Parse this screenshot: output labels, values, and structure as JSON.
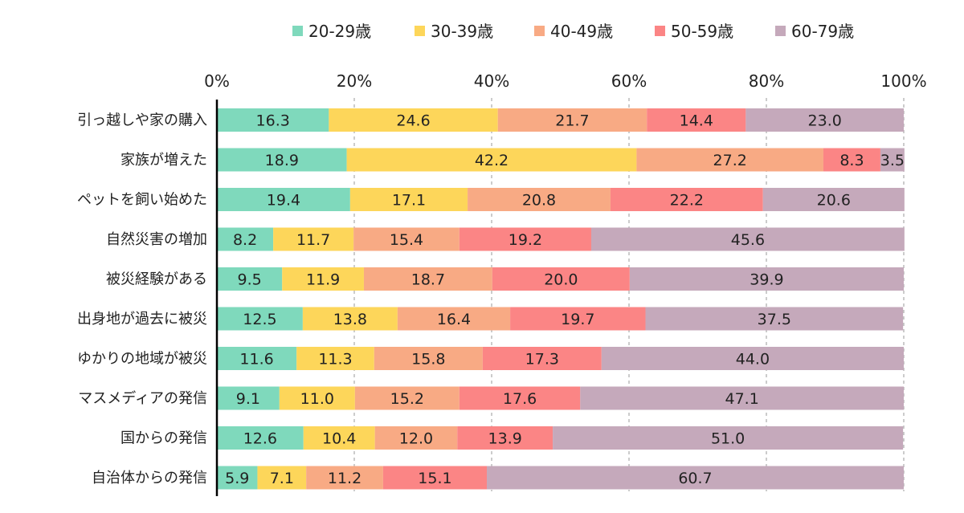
{
  "chart_data": {
    "type": "bar",
    "orientation": "horizontal",
    "stacked": true,
    "title": "",
    "xlabel": "",
    "ylabel": "",
    "xlim": [
      0,
      100
    ],
    "x_ticks": [
      "0%",
      "20%",
      "40%",
      "60%",
      "80%",
      "100%"
    ],
    "grid": "vertical dashed",
    "legend_position": "top",
    "categories": [
      "引っ越しや家の購入",
      "家族が増えた",
      "ペットを飼い始めた",
      "自然災害の増加",
      "被災経験がある",
      "出身地が過去に被災",
      "ゆかりの地域が被災",
      "マスメディアの発信",
      "国からの発信",
      "自治体からの発信"
    ],
    "series": [
      {
        "name": "20-29歳",
        "color": "#7fd9bc",
        "values": [
          16.3,
          18.9,
          19.4,
          8.2,
          9.5,
          12.5,
          11.6,
          9.1,
          12.6,
          5.9
        ],
        "labels": [
          "16.3",
          "18.9",
          "19.4",
          "8.2",
          "9.5",
          "12.5",
          "11.6",
          "9.1",
          "12.6",
          "5.9"
        ]
      },
      {
        "name": "30-39歳",
        "color": "#fdd65a",
        "values": [
          24.6,
          42.2,
          17.1,
          11.7,
          11.9,
          13.8,
          11.3,
          11.0,
          10.4,
          7.1
        ],
        "labels": [
          "24.6",
          "42.2",
          "17.1",
          "11.7",
          "11.9",
          "13.8",
          "11.3",
          "11.0",
          "10.4",
          "7.1"
        ]
      },
      {
        "name": "40-49歳",
        "color": "#f8aa84",
        "values": [
          21.7,
          27.2,
          20.8,
          15.4,
          18.7,
          16.4,
          15.8,
          15.2,
          12.0,
          11.2
        ],
        "labels": [
          "21.7",
          "27.2",
          "20.8",
          "15.4",
          "18.7",
          "16.4",
          "15.8",
          "15.2",
          "12.0",
          "11.2"
        ]
      },
      {
        "name": "50-59歳",
        "color": "#fb8585",
        "values": [
          14.4,
          8.3,
          22.2,
          19.2,
          20.0,
          19.7,
          17.3,
          17.6,
          13.9,
          15.1
        ],
        "labels": [
          "14.4",
          "8.3",
          "22.2",
          "19.2",
          "20.0",
          "19.7",
          "17.3",
          "17.6",
          "13.9",
          "15.1"
        ]
      },
      {
        "name": "60-79歳",
        "color": "#c5a9bb",
        "values": [
          23.0,
          3.5,
          20.6,
          45.6,
          39.9,
          37.5,
          44.0,
          47.1,
          51.0,
          60.7
        ],
        "labels": [
          "23.0",
          "3.5",
          "20.6",
          "45.6",
          "39.9",
          "37.5",
          "44.0",
          "47.1",
          "51.0",
          "60.7"
        ]
      }
    ]
  }
}
